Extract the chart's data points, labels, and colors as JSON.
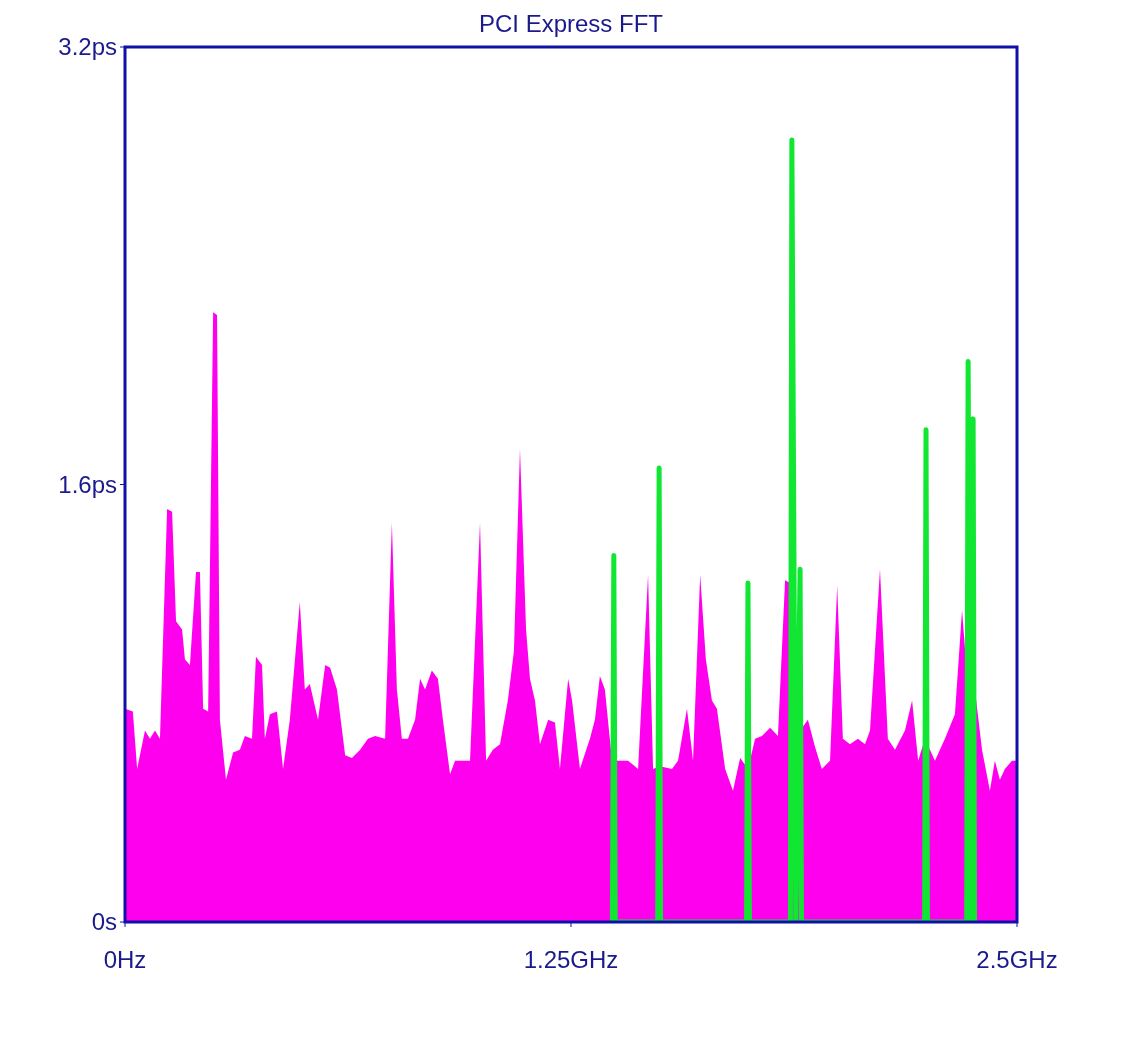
{
  "chart_data": {
    "type": "area",
    "title": "PCI Express FFT",
    "xlim": [
      0,
      2.5
    ],
    "ylim": [
      0,
      3.2
    ],
    "xticks": [
      {
        "value": 0,
        "label": "0Hz"
      },
      {
        "value": 1.25,
        "label": "1.25GHz"
      },
      {
        "value": 2.5,
        "label": "2.5GHz"
      }
    ],
    "yticks": [
      {
        "value": 0,
        "label": "0s"
      },
      {
        "value": 1.6,
        "label": "1.6ps"
      },
      {
        "value": 3.2,
        "label": "3.2ps"
      }
    ],
    "series": [
      {
        "color": "#ff00ee",
        "x": [
          0,
          0.022,
          0.034,
          0.056,
          0.07,
          0.084,
          0.098,
          0.118,
          0.132,
          0.143,
          0.16,
          0.168,
          0.182,
          0.199,
          0.21,
          0.219,
          0.233,
          0.247,
          0.258,
          0.266,
          0.283,
          0.303,
          0.322,
          0.336,
          0.356,
          0.367,
          0.384,
          0.392,
          0.406,
          0.426,
          0.443,
          0.462,
          0.49,
          0.504,
          0.518,
          0.541,
          0.561,
          0.575,
          0.594,
          0.617,
          0.636,
          0.659,
          0.681,
          0.701,
          0.729,
          0.748,
          0.762,
          0.776,
          0.793,
          0.813,
          0.827,
          0.841,
          0.86,
          0.877,
          0.891,
          0.911,
          0.925,
          0.944,
          0.967,
          0.995,
          1.012,
          1.031,
          1.051,
          1.073,
          1.09,
          1.107,
          1.124,
          1.135,
          1.149,
          1.163,
          1.186,
          1.205,
          1.219,
          1.242,
          1.253,
          1.275,
          1.303,
          1.317,
          1.331,
          1.345,
          1.365,
          1.387,
          1.41,
          1.438,
          1.466,
          1.48,
          1.499,
          1.533,
          1.55,
          1.575,
          1.592,
          1.612,
          1.628,
          1.645,
          1.659,
          1.682,
          1.704,
          1.724,
          1.746,
          1.766,
          1.785,
          1.808,
          1.83,
          1.85,
          1.864,
          1.878,
          1.892,
          1.914,
          1.934,
          1.953,
          1.976,
          1.996,
          2.012,
          2.032,
          2.054,
          2.074,
          2.088,
          2.116,
          2.138,
          2.158,
          2.186,
          2.206,
          2.223,
          2.242,
          2.27,
          2.298,
          2.326,
          2.346,
          2.363,
          2.382,
          2.402,
          2.424,
          2.438,
          2.452,
          2.466,
          2.486,
          2.5
        ],
        "values": [
          0.78,
          0.77,
          0.56,
          0.7,
          0.67,
          0.7,
          0.67,
          1.51,
          1.5,
          1.1,
          1.07,
          0.96,
          0.94,
          1.28,
          1.28,
          0.78,
          0.77,
          2.23,
          2.22,
          0.74,
          0.52,
          0.62,
          0.63,
          0.68,
          0.67,
          0.97,
          0.94,
          0.67,
          0.76,
          0.77,
          0.56,
          0.74,
          1.17,
          0.85,
          0.87,
          0.74,
          0.94,
          0.93,
          0.85,
          0.61,
          0.6,
          0.63,
          0.67,
          0.68,
          0.67,
          1.46,
          0.85,
          0.67,
          0.67,
          0.74,
          0.89,
          0.85,
          0.92,
          0.89,
          0.74,
          0.54,
          0.59,
          0.59,
          0.59,
          1.46,
          0.59,
          0.63,
          0.65,
          0.81,
          0.99,
          1.73,
          1.07,
          0.89,
          0.81,
          0.65,
          0.74,
          0.73,
          0.56,
          0.89,
          0.81,
          0.56,
          0.67,
          0.74,
          0.9,
          0.85,
          0.59,
          0.59,
          0.59,
          0.56,
          1.27,
          0.56,
          0.57,
          0.56,
          0.59,
          0.78,
          0.59,
          1.27,
          0.96,
          0.81,
          0.78,
          0.56,
          0.48,
          0.6,
          0.56,
          0.67,
          0.68,
          0.71,
          0.68,
          1.25,
          1.24,
          0.81,
          0.7,
          0.74,
          0.64,
          0.56,
          0.59,
          1.23,
          0.67,
          0.65,
          0.67,
          0.65,
          0.7,
          1.29,
          0.67,
          0.63,
          0.7,
          0.81,
          0.59,
          0.67,
          0.59,
          0.67,
          0.76,
          1.14,
          0.85,
          0.85,
          0.63,
          0.48,
          0.59,
          0.52,
          0.56,
          0.59,
          0.59
        ]
      },
      {
        "type": "line",
        "color": "#11e633",
        "x": [
          1.366,
          1.37,
          1.374,
          1.493,
          1.497,
          1.501,
          1.742,
          1.746,
          1.75,
          1.865,
          1.869,
          1.88,
          1.892,
          1.896,
          2.241,
          2.245,
          2.249,
          2.359,
          2.363,
          2.37,
          2.377,
          2.381
        ],
        "values": [
          0,
          1.34,
          0,
          0,
          1.66,
          0,
          0,
          1.24,
          0,
          0,
          2.86,
          0,
          1.29,
          0,
          0,
          1.8,
          0,
          0,
          2.05,
          0,
          1.84,
          0
        ]
      }
    ]
  }
}
